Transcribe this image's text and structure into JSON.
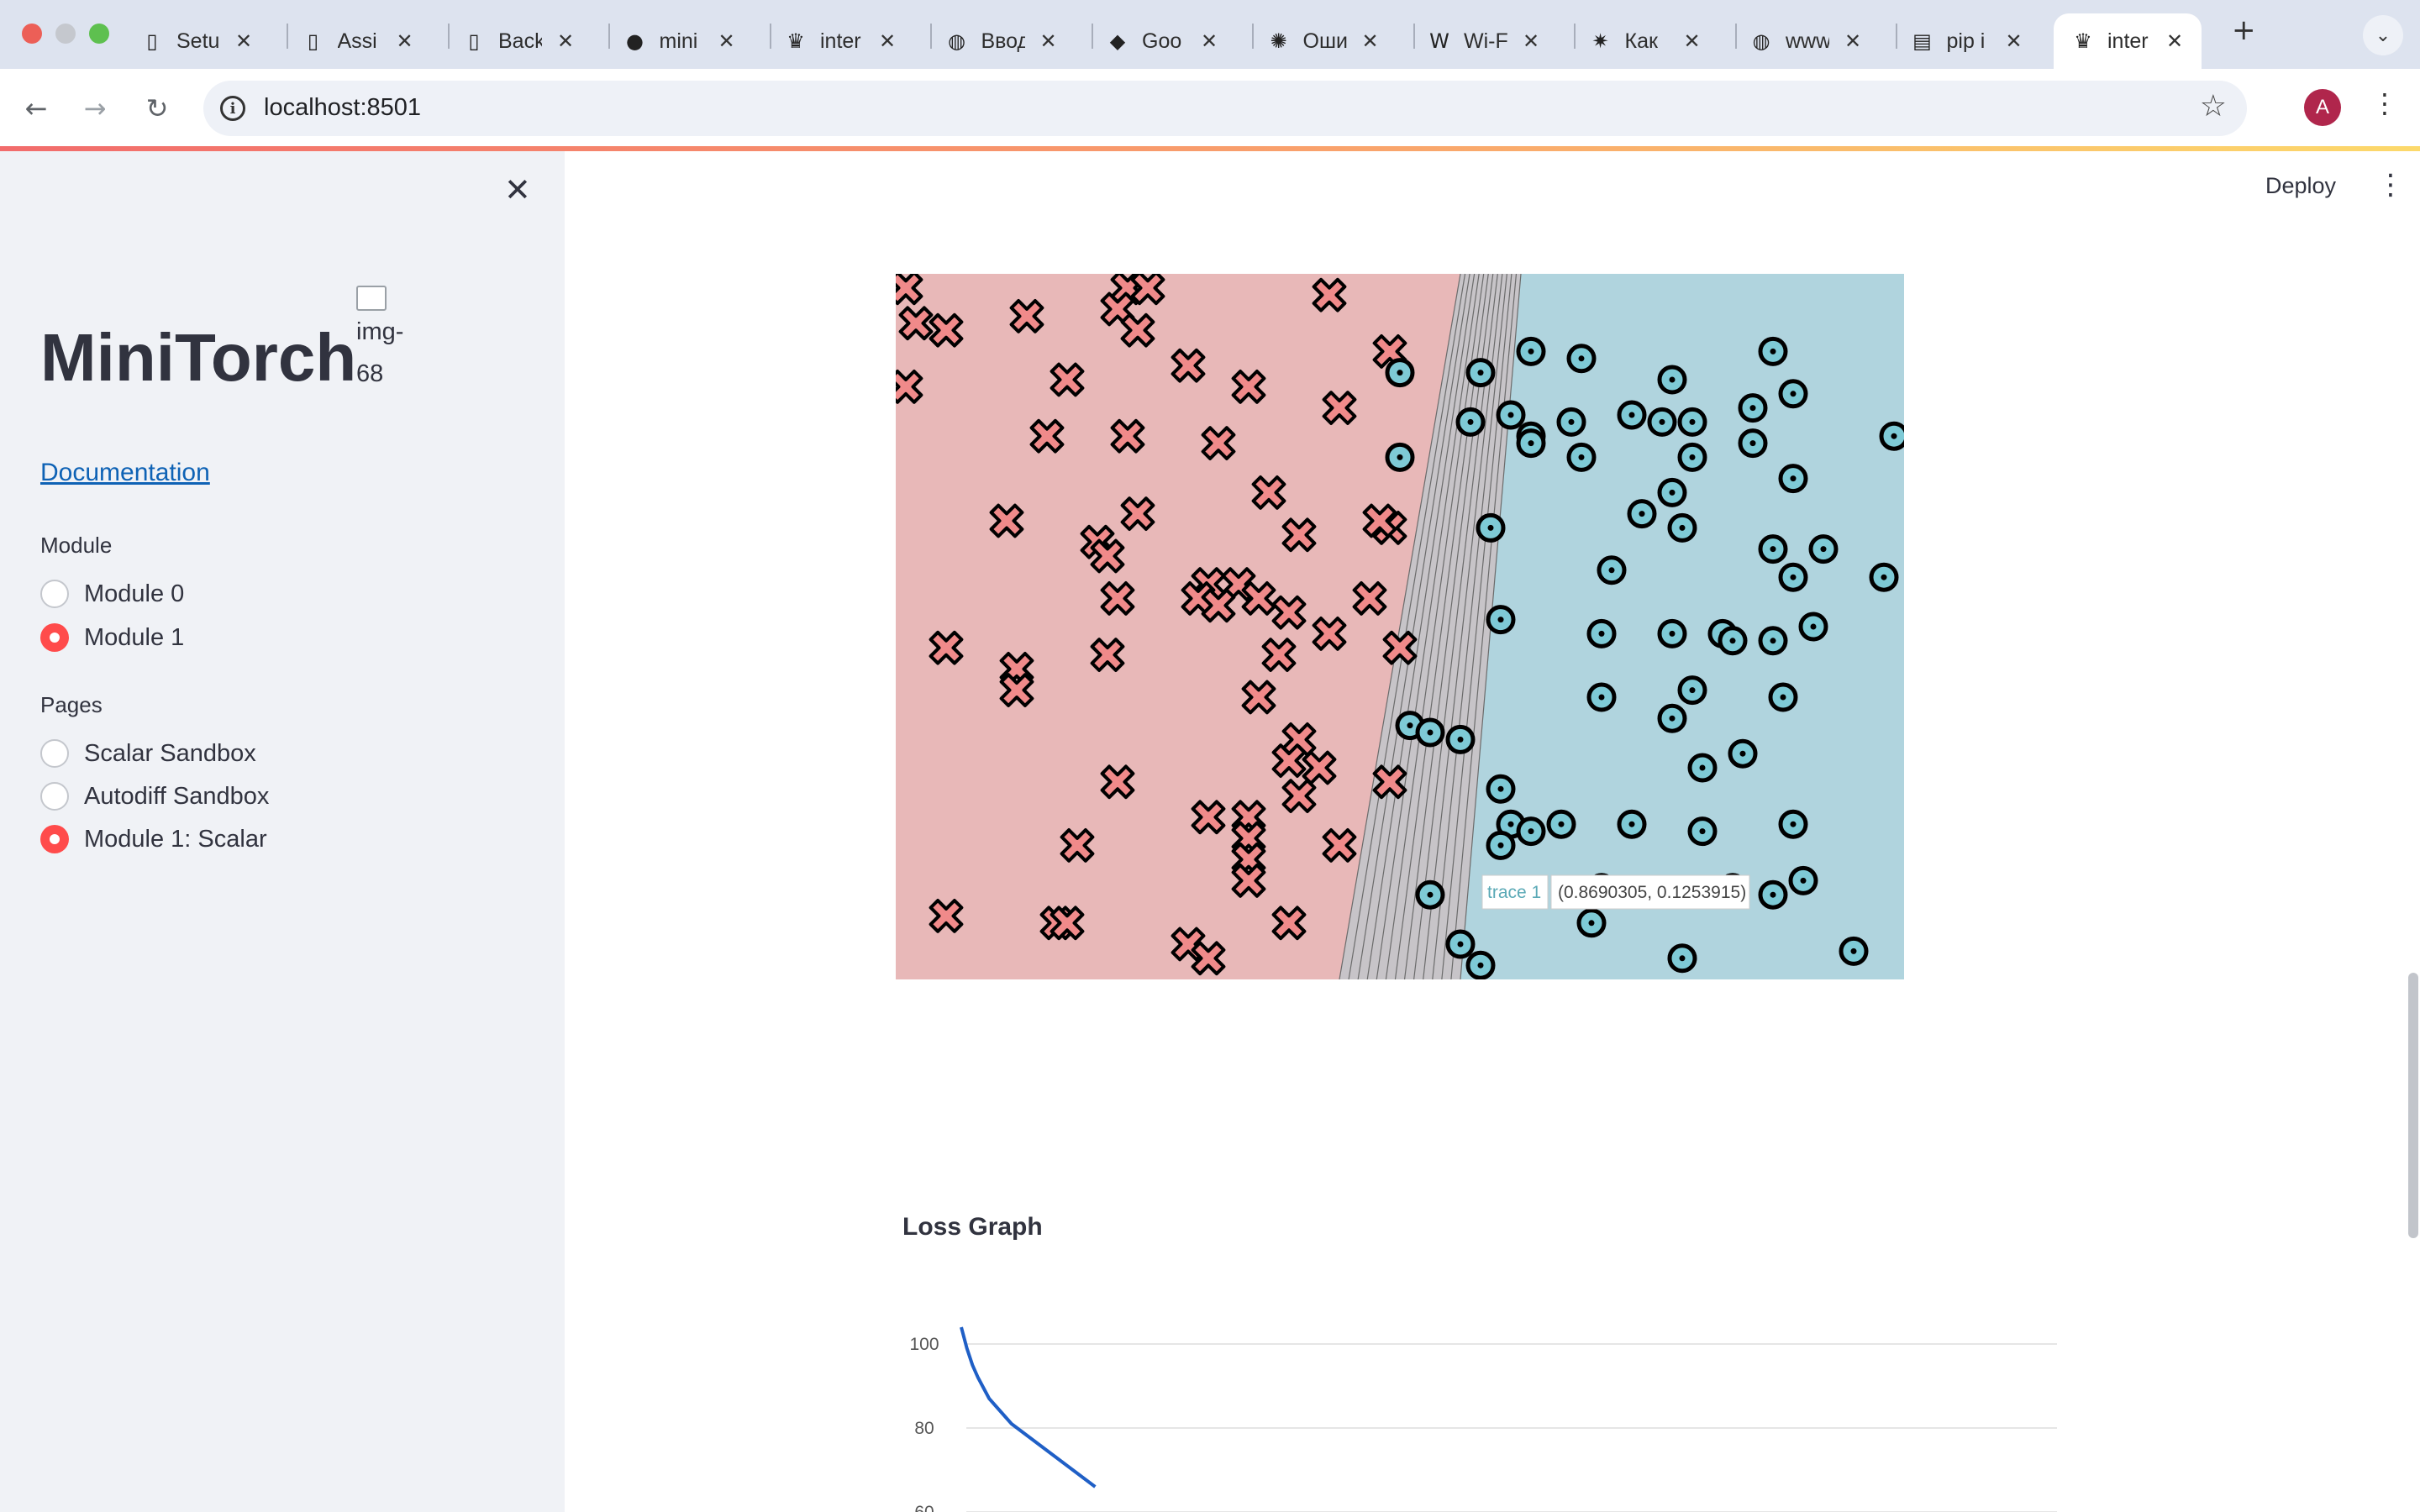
{
  "browser": {
    "tabs": [
      {
        "label": "Setu",
        "icon": "doc-icon"
      },
      {
        "label": "Assi",
        "icon": "doc-icon"
      },
      {
        "label": "Back",
        "icon": "doc-icon"
      },
      {
        "label": "mini",
        "icon": "github-icon"
      },
      {
        "label": "inter",
        "icon": "streamlit-icon"
      },
      {
        "label": "Ввод",
        "icon": "globe-icon"
      },
      {
        "label": "Goo",
        "icon": "colab-icon"
      },
      {
        "label": "Оши",
        "icon": "openai-icon"
      },
      {
        "label": "Wi-F",
        "icon": "wikipedia-icon"
      },
      {
        "label": "Как",
        "icon": "sparkle-icon"
      },
      {
        "label": "www",
        "icon": "globe-icon"
      },
      {
        "label": "pip i",
        "icon": "page-icon"
      },
      {
        "label": "inter",
        "icon": "streamlit-icon"
      }
    ],
    "url": "localhost:8501",
    "profile_initial": "A"
  },
  "sidebar": {
    "title": "MiniTorch",
    "image_alt": "img-68",
    "doc_link": "Documentation",
    "module_group": {
      "label": "Module",
      "options": [
        {
          "label": "Module 0",
          "selected": false
        },
        {
          "label": "Module 1",
          "selected": true
        }
      ]
    },
    "pages_group": {
      "label": "Pages",
      "options": [
        {
          "label": "Scalar Sandbox",
          "selected": false
        },
        {
          "label": "Autodiff Sandbox",
          "selected": false
        },
        {
          "label": "Module 1: Scalar",
          "selected": true
        }
      ]
    }
  },
  "header": {
    "deploy_label": "Deploy"
  },
  "colors": {
    "accent": "#ff4b4b",
    "class0_region": "#e8b8b8",
    "class1_region": "#b0d4de",
    "class0_marker": "#f08a8a",
    "class1_marker": "#7ecad6",
    "loss_line": "#1f5fc6"
  },
  "chart_data": [
    {
      "type": "scatter",
      "title": "",
      "xlim": [
        0,
        1
      ],
      "ylim": [
        0,
        1
      ],
      "decision_boundary_x": [
        0.44,
        0.62
      ],
      "hover": {
        "trace": "trace 1",
        "label": "(0.8690305, 0.1253915)"
      },
      "series": [
        {
          "class": 0,
          "marker": "x-icon",
          "points": [
            [
              0.01,
              0.98
            ],
            [
              0.02,
              0.93
            ],
            [
              0.05,
              0.92
            ],
            [
              0.01,
              0.84
            ],
            [
              0.13,
              0.94
            ],
            [
              0.23,
              0.98
            ],
            [
              0.25,
              0.98
            ],
            [
              0.22,
              0.95
            ],
            [
              0.24,
              0.92
            ],
            [
              0.43,
              0.97
            ],
            [
              0.17,
              0.85
            ],
            [
              0.29,
              0.87
            ],
            [
              0.35,
              0.84
            ],
            [
              0.44,
              0.81
            ],
            [
              0.15,
              0.77
            ],
            [
              0.23,
              0.77
            ],
            [
              0.32,
              0.76
            ],
            [
              0.49,
              0.89
            ],
            [
              0.11,
              0.65
            ],
            [
              0.24,
              0.66
            ],
            [
              0.2,
              0.62
            ],
            [
              0.21,
              0.6
            ],
            [
              0.37,
              0.69
            ],
            [
              0.4,
              0.63
            ],
            [
              0.49,
              0.64
            ],
            [
              0.48,
              0.65
            ],
            [
              0.31,
              0.56
            ],
            [
              0.34,
              0.56
            ],
            [
              0.3,
              0.54
            ],
            [
              0.32,
              0.53
            ],
            [
              0.36,
              0.54
            ],
            [
              0.39,
              0.52
            ],
            [
              0.22,
              0.54
            ],
            [
              0.47,
              0.54
            ],
            [
              0.05,
              0.47
            ],
            [
              0.12,
              0.44
            ],
            [
              0.12,
              0.41
            ],
            [
              0.21,
              0.46
            ],
            [
              0.38,
              0.46
            ],
            [
              0.43,
              0.49
            ],
            [
              0.36,
              0.4
            ],
            [
              0.5,
              0.47
            ],
            [
              0.4,
              0.34
            ],
            [
              0.39,
              0.31
            ],
            [
              0.42,
              0.3
            ],
            [
              0.4,
              0.26
            ],
            [
              0.49,
              0.28
            ],
            [
              0.22,
              0.28
            ],
            [
              0.31,
              0.23
            ],
            [
              0.35,
              0.23
            ],
            [
              0.35,
              0.2
            ],
            [
              0.35,
              0.17
            ],
            [
              0.35,
              0.14
            ],
            [
              0.18,
              0.19
            ],
            [
              0.44,
              0.19
            ],
            [
              0.05,
              0.09
            ],
            [
              0.16,
              0.08
            ],
            [
              0.17,
              0.08
            ],
            [
              0.39,
              0.08
            ],
            [
              0.29,
              0.05
            ],
            [
              0.31,
              0.03
            ]
          ]
        },
        {
          "class": 1,
          "marker": "dot-circle-icon",
          "points": [
            [
              0.5,
              0.86
            ],
            [
              0.58,
              0.86
            ],
            [
              0.63,
              0.89
            ],
            [
              0.68,
              0.88
            ],
            [
              0.77,
              0.85
            ],
            [
              0.87,
              0.89
            ],
            [
              0.57,
              0.79
            ],
            [
              0.61,
              0.8
            ],
            [
              0.63,
              0.77
            ],
            [
              0.67,
              0.79
            ],
            [
              0.73,
              0.8
            ],
            [
              0.76,
              0.79
            ],
            [
              0.79,
              0.79
            ],
            [
              0.85,
              0.81
            ],
            [
              0.89,
              0.83
            ],
            [
              0.85,
              0.76
            ],
            [
              0.99,
              0.77
            ],
            [
              0.5,
              0.74
            ],
            [
              0.63,
              0.76
            ],
            [
              0.68,
              0.74
            ],
            [
              0.79,
              0.74
            ],
            [
              0.89,
              0.71
            ],
            [
              0.77,
              0.69
            ],
            [
              0.74,
              0.66
            ],
            [
              0.78,
              0.64
            ],
            [
              0.59,
              0.64
            ],
            [
              0.71,
              0.58
            ],
            [
              0.87,
              0.61
            ],
            [
              0.92,
              0.61
            ],
            [
              0.98,
              0.57
            ],
            [
              0.89,
              0.57
            ],
            [
              0.6,
              0.51
            ],
            [
              0.7,
              0.49
            ],
            [
              0.77,
              0.49
            ],
            [
              0.82,
              0.49
            ],
            [
              0.83,
              0.48
            ],
            [
              0.87,
              0.48
            ],
            [
              0.91,
              0.5
            ],
            [
              0.88,
              0.4
            ],
            [
              0.79,
              0.41
            ],
            [
              0.7,
              0.4
            ],
            [
              0.77,
              0.37
            ],
            [
              0.51,
              0.36
            ],
            [
              0.53,
              0.35
            ],
            [
              0.56,
              0.34
            ],
            [
              0.6,
              0.27
            ],
            [
              0.8,
              0.3
            ],
            [
              0.84,
              0.32
            ],
            [
              0.61,
              0.22
            ],
            [
              0.63,
              0.21
            ],
            [
              0.6,
              0.19
            ],
            [
              0.66,
              0.22
            ],
            [
              0.73,
              0.22
            ],
            [
              0.8,
              0.21
            ],
            [
              0.89,
              0.22
            ],
            [
              0.53,
              0.12
            ],
            [
              0.7,
              0.13
            ],
            [
              0.83,
              0.13
            ],
            [
              0.87,
              0.12
            ],
            [
              0.9,
              0.14
            ],
            [
              0.56,
              0.05
            ],
            [
              0.58,
              0.02
            ],
            [
              0.69,
              0.08
            ],
            [
              0.78,
              0.03
            ],
            [
              0.95,
              0.04
            ]
          ]
        }
      ]
    },
    {
      "type": "line",
      "title": "Loss Graph",
      "ylim": [
        60,
        105
      ],
      "yticks": [
        100,
        80,
        60
      ],
      "series": [
        {
          "x": [
            0,
            1,
            2,
            3,
            4,
            5,
            6,
            7,
            8,
            9,
            10,
            12,
            14,
            16,
            18,
            20,
            22,
            24
          ],
          "values": [
            104,
            99,
            95,
            92,
            89.5,
            87,
            85.5,
            84,
            82.5,
            81,
            80,
            78,
            76,
            74,
            72,
            70,
            68,
            66
          ]
        }
      ]
    }
  ]
}
